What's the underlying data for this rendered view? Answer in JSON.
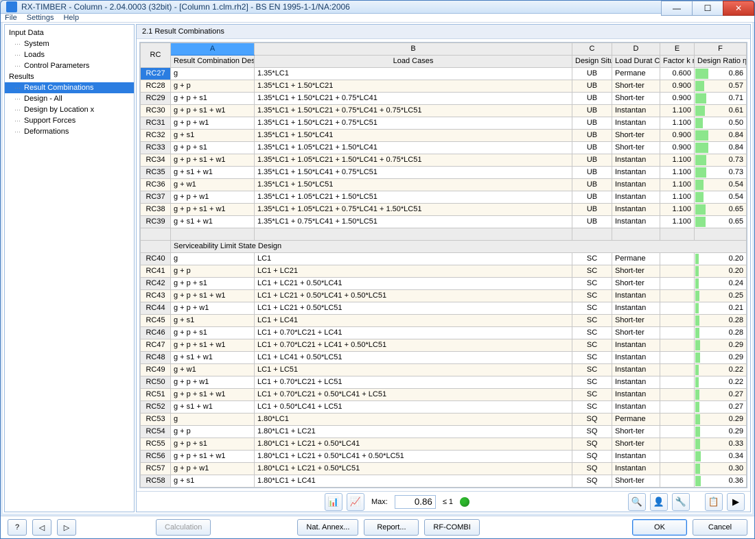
{
  "window": {
    "title": "RX-TIMBER - Column - 2.04.0003 (32bit) - [Column 1.clm.rh2] - BS EN 1995-1-1/NA:2006"
  },
  "menu": [
    "File",
    "Settings",
    "Help"
  ],
  "tree": {
    "roots": [
      {
        "label": "Input Data",
        "children": [
          "System",
          "Loads",
          "Control Parameters"
        ]
      },
      {
        "label": "Results",
        "children": [
          "Result Combinations",
          "Design - All",
          "Design by Location x",
          "Support Forces",
          "Deformations"
        ]
      }
    ],
    "selected": "Result Combinations"
  },
  "section": {
    "title": "2.1 Result Combinations"
  },
  "columns": {
    "rc": "RC",
    "A": "A",
    "A_sub": "Result Combination Description",
    "B": "B",
    "B_sub": "Load Cases",
    "C": "C",
    "C_sub": "Design Situation",
    "D": "D",
    "D_sub": "Load Durat Class (LDC",
    "E": "E",
    "E_sub": "Factor k mod",
    "F": "F",
    "F_sub": "Design Ratio η max"
  },
  "rows": [
    {
      "rc": "RC27",
      "desc": "g",
      "cases": "1.35*LC1",
      "sit": "UB",
      "ldc": "Permane",
      "kmod": "0.600",
      "ratio": 0.86,
      "sel": true
    },
    {
      "rc": "RC28",
      "desc": "g + p",
      "cases": "1.35*LC1 + 1.50*LC21",
      "sit": "UB",
      "ldc": "Short-ter",
      "kmod": "0.900",
      "ratio": 0.57
    },
    {
      "rc": "RC29",
      "desc": "g + p + s1",
      "cases": "1.35*LC1 + 1.50*LC21 + 0.75*LC41",
      "sit": "UB",
      "ldc": "Short-ter",
      "kmod": "0.900",
      "ratio": 0.71
    },
    {
      "rc": "RC30",
      "desc": "g + p + s1 + w1",
      "cases": "1.35*LC1 + 1.50*LC21 + 0.75*LC41 + 0.75*LC51",
      "sit": "UB",
      "ldc": "Instantan",
      "kmod": "1.100",
      "ratio": 0.61
    },
    {
      "rc": "RC31",
      "desc": "g + p + w1",
      "cases": "1.35*LC1 + 1.50*LC21 + 0.75*LC51",
      "sit": "UB",
      "ldc": "Instantan",
      "kmod": "1.100",
      "ratio": 0.5
    },
    {
      "rc": "RC32",
      "desc": "g + s1",
      "cases": "1.35*LC1 + 1.50*LC41",
      "sit": "UB",
      "ldc": "Short-ter",
      "kmod": "0.900",
      "ratio": 0.84
    },
    {
      "rc": "RC33",
      "desc": "g + p + s1",
      "cases": "1.35*LC1 + 1.05*LC21 + 1.50*LC41",
      "sit": "UB",
      "ldc": "Short-ter",
      "kmod": "0.900",
      "ratio": 0.84
    },
    {
      "rc": "RC34",
      "desc": "g + p + s1 + w1",
      "cases": "1.35*LC1 + 1.05*LC21 + 1.50*LC41 + 0.75*LC51",
      "sit": "UB",
      "ldc": "Instantan",
      "kmod": "1.100",
      "ratio": 0.73
    },
    {
      "rc": "RC35",
      "desc": "g + s1 + w1",
      "cases": "1.35*LC1 + 1.50*LC41 + 0.75*LC51",
      "sit": "UB",
      "ldc": "Instantan",
      "kmod": "1.100",
      "ratio": 0.73
    },
    {
      "rc": "RC36",
      "desc": "g + w1",
      "cases": "1.35*LC1 + 1.50*LC51",
      "sit": "UB",
      "ldc": "Instantan",
      "kmod": "1.100",
      "ratio": 0.54
    },
    {
      "rc": "RC37",
      "desc": "g + p + w1",
      "cases": "1.35*LC1 + 1.05*LC21 + 1.50*LC51",
      "sit": "UB",
      "ldc": "Instantan",
      "kmod": "1.100",
      "ratio": 0.54
    },
    {
      "rc": "RC38",
      "desc": "g + p + s1 + w1",
      "cases": "1.35*LC1 + 1.05*LC21 + 0.75*LC41 + 1.50*LC51",
      "sit": "UB",
      "ldc": "Instantan",
      "kmod": "1.100",
      "ratio": 0.65
    },
    {
      "rc": "RC39",
      "desc": "g + s1 + w1",
      "cases": "1.35*LC1 + 0.75*LC41 + 1.50*LC51",
      "sit": "UB",
      "ldc": "Instantan",
      "kmod": "1.100",
      "ratio": 0.65
    },
    {
      "blank": true
    },
    {
      "section": "Serviceability Limit State Design"
    },
    {
      "rc": "RC40",
      "desc": "g",
      "cases": "LC1",
      "sit": "SC",
      "ldc": "Permane",
      "kmod": "",
      "ratio": 0.2
    },
    {
      "rc": "RC41",
      "desc": "g + p",
      "cases": "LC1 + LC21",
      "sit": "SC",
      "ldc": "Short-ter",
      "kmod": "",
      "ratio": 0.2
    },
    {
      "rc": "RC42",
      "desc": "g + p + s1",
      "cases": "LC1 + LC21 + 0.50*LC41",
      "sit": "SC",
      "ldc": "Short-ter",
      "kmod": "",
      "ratio": 0.24
    },
    {
      "rc": "RC43",
      "desc": "g + p + s1 + w1",
      "cases": "LC1 + LC21 + 0.50*LC41 + 0.50*LC51",
      "sit": "SC",
      "ldc": "Instantan",
      "kmod": "",
      "ratio": 0.25
    },
    {
      "rc": "RC44",
      "desc": "g + p + w1",
      "cases": "LC1 + LC21 + 0.50*LC51",
      "sit": "SC",
      "ldc": "Instantan",
      "kmod": "",
      "ratio": 0.21
    },
    {
      "rc": "RC45",
      "desc": "g + s1",
      "cases": "LC1 + LC41",
      "sit": "SC",
      "ldc": "Short-ter",
      "kmod": "",
      "ratio": 0.28
    },
    {
      "rc": "RC46",
      "desc": "g + p + s1",
      "cases": "LC1 + 0.70*LC21 + LC41",
      "sit": "SC",
      "ldc": "Short-ter",
      "kmod": "",
      "ratio": 0.28
    },
    {
      "rc": "RC47",
      "desc": "g + p + s1 + w1",
      "cases": "LC1 + 0.70*LC21 + LC41 + 0.50*LC51",
      "sit": "SC",
      "ldc": "Instantan",
      "kmod": "",
      "ratio": 0.29
    },
    {
      "rc": "RC48",
      "desc": "g + s1 + w1",
      "cases": "LC1 + LC41 + 0.50*LC51",
      "sit": "SC",
      "ldc": "Instantan",
      "kmod": "",
      "ratio": 0.29
    },
    {
      "rc": "RC49",
      "desc": "g + w1",
      "cases": "LC1 + LC51",
      "sit": "SC",
      "ldc": "Instantan",
      "kmod": "",
      "ratio": 0.22
    },
    {
      "rc": "RC50",
      "desc": "g + p + w1",
      "cases": "LC1 + 0.70*LC21 + LC51",
      "sit": "SC",
      "ldc": "Instantan",
      "kmod": "",
      "ratio": 0.22
    },
    {
      "rc": "RC51",
      "desc": "g + p + s1 + w1",
      "cases": "LC1 + 0.70*LC21 + 0.50*LC41 + LC51",
      "sit": "SC",
      "ldc": "Instantan",
      "kmod": "",
      "ratio": 0.27
    },
    {
      "rc": "RC52",
      "desc": "g + s1 + w1",
      "cases": "LC1 + 0.50*LC41 + LC51",
      "sit": "SC",
      "ldc": "Instantan",
      "kmod": "",
      "ratio": 0.27
    },
    {
      "rc": "RC53",
      "desc": "g",
      "cases": "1.80*LC1",
      "sit": "SQ",
      "ldc": "Permane",
      "kmod": "",
      "ratio": 0.29
    },
    {
      "rc": "RC54",
      "desc": "g + p",
      "cases": "1.80*LC1 + LC21",
      "sit": "SQ",
      "ldc": "Short-ter",
      "kmod": "",
      "ratio": 0.29
    },
    {
      "rc": "RC55",
      "desc": "g + p + s1",
      "cases": "1.80*LC1 + LC21 + 0.50*LC41",
      "sit": "SQ",
      "ldc": "Short-ter",
      "kmod": "",
      "ratio": 0.33
    },
    {
      "rc": "RC56",
      "desc": "g + p + s1 + w1",
      "cases": "1.80*LC1 + LC21 + 0.50*LC41 + 0.50*LC51",
      "sit": "SQ",
      "ldc": "Instantan",
      "kmod": "",
      "ratio": 0.34
    },
    {
      "rc": "RC57",
      "desc": "g + p + w1",
      "cases": "1.80*LC1 + LC21 + 0.50*LC51",
      "sit": "SQ",
      "ldc": "Instantan",
      "kmod": "",
      "ratio": 0.3
    },
    {
      "rc": "RC58",
      "desc": "g + s1",
      "cases": "1.80*LC1 + LC41",
      "sit": "SQ",
      "ldc": "Short-ter",
      "kmod": "",
      "ratio": 0.36
    }
  ],
  "status": {
    "max_label": "Max:",
    "max_value": "0.86",
    "limit": "≤ 1"
  },
  "footer": {
    "calculation": "Calculation",
    "nat_annex": "Nat. Annex...",
    "report": "Report...",
    "rf_combi": "RF-COMBI",
    "ok": "OK",
    "cancel": "Cancel"
  },
  "style": {
    "ratio_bar_color": "#8ce68c",
    "selected_bg": "#2b7de1"
  }
}
